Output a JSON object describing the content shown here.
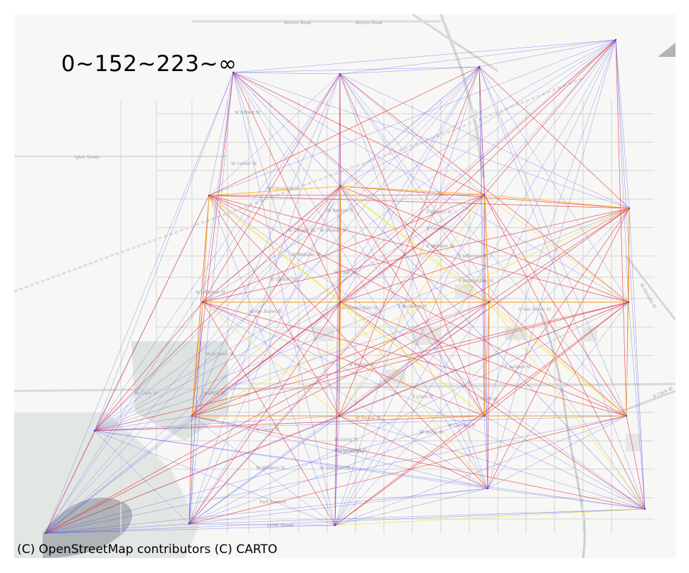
{
  "legend": {
    "text": "0~152~223~∞"
  },
  "attribution": "(C) OpenStreetMap contributors (C) CARTO",
  "basemap": {
    "labels": [
      "Amoco Road",
      "Amoco Road",
      "Igloo Street",
      "W Gilbert St",
      "W Center St",
      "W Cleveland St",
      "W Benton St",
      "W Ottawa St",
      "W Oneida St",
      "W Webster St",
      "W Cass St",
      "W Clinton St",
      "W Jefferson St",
      "W Washington St",
      "W Van Buren St",
      "W Jackson St",
      "W Clark St",
      "W Clark St",
      "W Clinton St",
      "W Davis St",
      "E Clark St",
      "E Clark St",
      "E Clark St",
      "E Benton St",
      "E Cass St",
      "E Webster St",
      "E Jefferson St",
      "E Washington St",
      "E Mulberry St",
      "E Van Buren St",
      "E Jackson St",
      "W Williams St",
      "W Sherman St",
      "W Irving St",
      "W Cayuga St",
      "W Sherwood St",
      "Park Avenue",
      "115th Street",
      "W Division St",
      "W Broadway",
      "W Doane St",
      "W Water St"
    ],
    "colors": {
      "background": "#f7f7f5",
      "road": "#e0e0de",
      "major_road": "#d3d3d1",
      "park": "#dbe2dc",
      "water": "#aeb4b8",
      "building": "#e6e6e4"
    }
  },
  "network": {
    "colors": {
      "low": "#3c3cf0",
      "mid": "#e03040",
      "high": "#f0e020",
      "high_strong": "#ffb000"
    },
    "thresholds": [
      152,
      223
    ]
  }
}
